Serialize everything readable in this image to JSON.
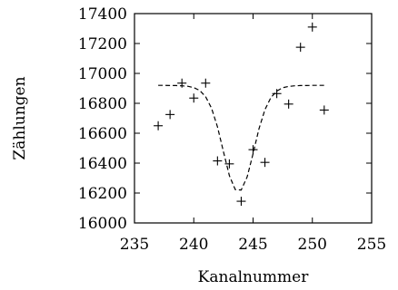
{
  "chart_data": {
    "type": "scatter",
    "xlabel": "Kanalnummer",
    "ylabel": "Zählungen",
    "xlim": [
      235,
      255
    ],
    "ylim": [
      16000,
      17400
    ],
    "xticks": [
      235,
      240,
      245,
      250,
      255
    ],
    "yticks": [
      16000,
      16200,
      16400,
      16600,
      16800,
      17000,
      17200,
      17400
    ],
    "grid": false,
    "series": [
      {
        "marker": "plus",
        "x": [
          237,
          238,
          239,
          240,
          241,
          242,
          243,
          244,
          245,
          246,
          247,
          248,
          249,
          250,
          251
        ],
        "y": [
          16650,
          16725,
          16935,
          16835,
          16935,
          16415,
          16395,
          16145,
          16490,
          16405,
          16865,
          16795,
          17175,
          17310,
          16755
        ]
      },
      {
        "style": "dashed",
        "x": [
          237,
          237.5,
          238,
          238.5,
          239,
          239.5,
          240,
          240.5,
          241,
          241.5,
          242,
          242.5,
          243,
          243.5,
          244,
          244.5,
          245,
          245.5,
          246,
          246.5,
          247,
          247.5,
          248,
          248.5,
          249,
          249.5,
          250,
          250.5,
          251
        ],
        "y": [
          16920,
          16920,
          16919,
          16919,
          16917,
          16914,
          16905,
          16886,
          16844,
          16767,
          16643,
          16477,
          16317,
          16223,
          16220,
          16308,
          16463,
          16630,
          16758,
          16838,
          16882,
          16904,
          16913,
          16917,
          16919,
          16919,
          16920,
          16920,
          16920
        ]
      }
    ]
  }
}
